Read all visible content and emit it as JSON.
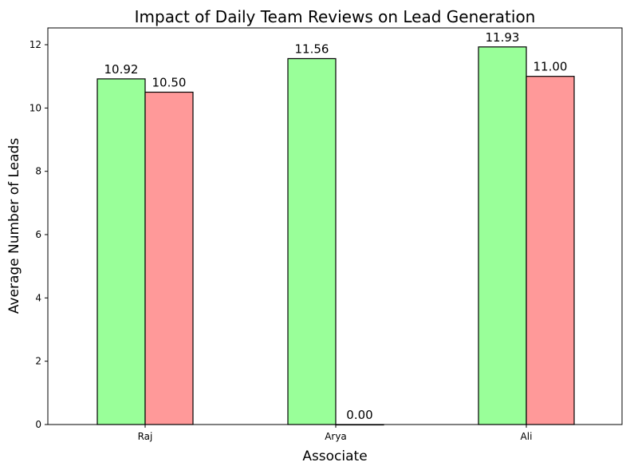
{
  "chart_data": {
    "type": "bar",
    "title": "Impact of Daily Team Reviews on Lead Generation",
    "xlabel": "Associate",
    "ylabel": "Average Number of Leads",
    "categories": [
      "Raj",
      "Arya",
      "Ali"
    ],
    "series": [
      {
        "values": [
          10.92,
          11.56,
          11.93
        ],
        "color": "#99ff99",
        "value_labels": [
          "10.92",
          "11.56",
          "11.93"
        ]
      },
      {
        "values": [
          10.5,
          0.0,
          11.0
        ],
        "color": "#ff9999",
        "value_labels": [
          "10.50",
          "0.00",
          "11.00"
        ]
      }
    ],
    "ylim": [
      0,
      12.53
    ],
    "yticks": [
      0,
      2,
      4,
      6,
      8,
      10,
      12
    ],
    "ytick_labels": [
      "0",
      "2",
      "4",
      "6",
      "8",
      "10",
      "12"
    ],
    "grid": false,
    "legend": "none",
    "bar_edge_color": "#000000"
  }
}
